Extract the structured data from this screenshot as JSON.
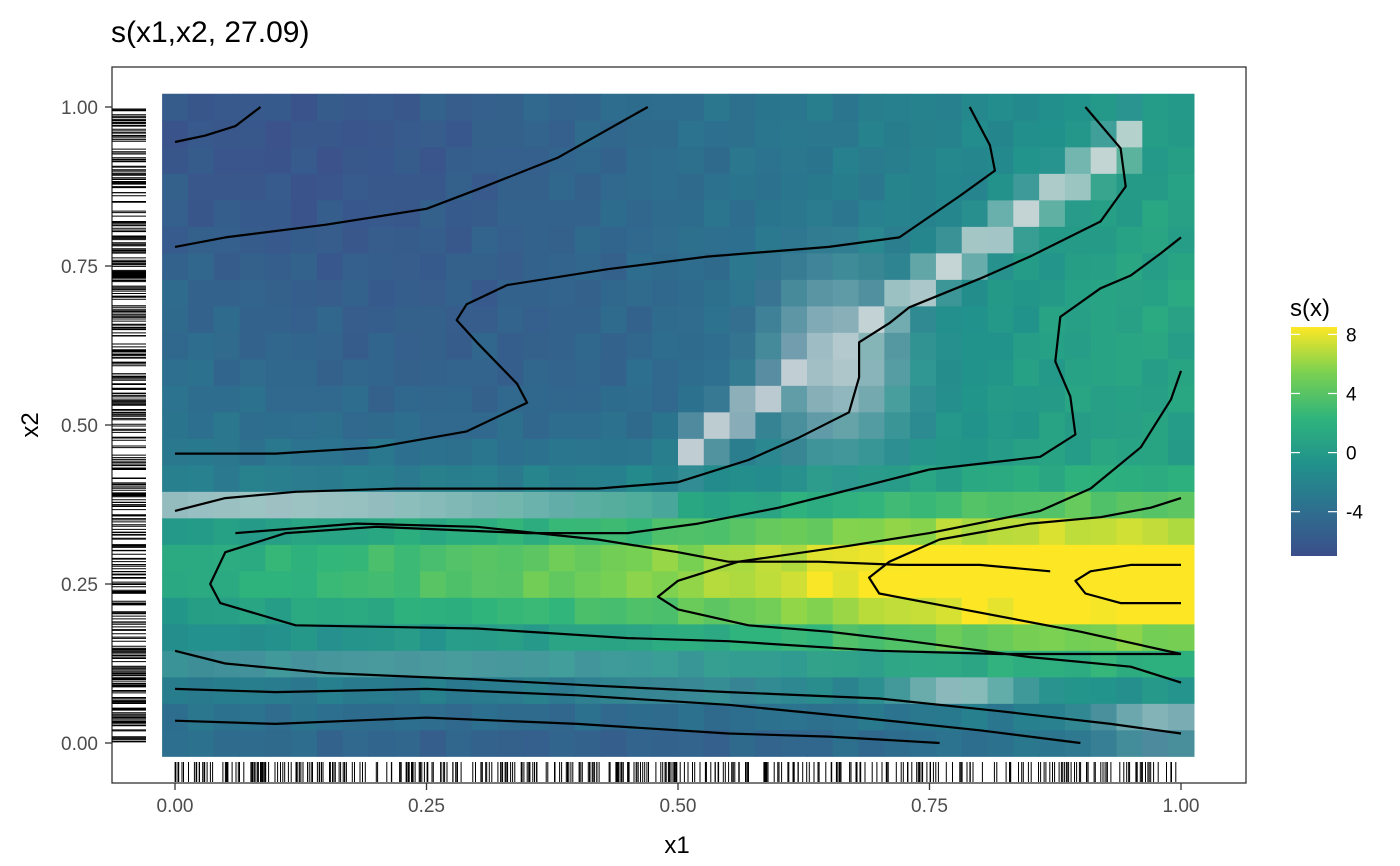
{
  "chart_data": {
    "type": "heatmap",
    "title": "s(x1,x2, 27.09)",
    "xlabel": "x1",
    "ylabel": "x2",
    "xlim": [
      0,
      1
    ],
    "ylim": [
      0,
      1
    ],
    "x_ticks": [
      0.0,
      0.25,
      0.5,
      0.75,
      1.0
    ],
    "y_ticks": [
      0.0,
      0.25,
      0.5,
      0.75,
      1.0
    ],
    "x_tick_labels": [
      "0.00",
      "0.25",
      "0.50",
      "0.75",
      "1.00"
    ],
    "y_tick_labels": [
      "0.00",
      "0.25",
      "0.50",
      "0.75",
      "1.00"
    ],
    "grid": false,
    "colorscale": "viridis",
    "legend": {
      "title": "s(x)",
      "position": "right",
      "range": [
        -7,
        8.5
      ],
      "ticks": [
        8,
        4,
        0,
        -4
      ],
      "tick_labels": [
        "8",
        "4",
        "0",
        "-4"
      ]
    },
    "surface_summary": {
      "min_region": "top-left (x1≈0.05, x2≈0.95), s(x)≈-6",
      "max_region": "right (x1≈0.97, x2≈0.25), s(x)≈8",
      "high_confidence_bands": "light bands near x2≈0.38, x2≈0.14, and diagonal ridge from (0.5,0.45) to (0.95,0.95)"
    },
    "contours": [
      [
        [
          0.0,
          0.945
        ],
        [
          0.03,
          0.955
        ],
        [
          0.06,
          0.97
        ],
        [
          0.085,
          1.0
        ]
      ],
      [
        [
          0.0,
          0.78
        ],
        [
          0.05,
          0.795
        ],
        [
          0.15,
          0.815
        ],
        [
          0.25,
          0.84
        ],
        [
          0.3,
          0.87
        ],
        [
          0.38,
          0.92
        ],
        [
          0.47,
          1.0
        ]
      ],
      [
        [
          0.0,
          0.455
        ],
        [
          0.1,
          0.455
        ],
        [
          0.2,
          0.465
        ],
        [
          0.29,
          0.49
        ],
        [
          0.35,
          0.535
        ],
        [
          0.34,
          0.565
        ],
        [
          0.3,
          0.63
        ],
        [
          0.28,
          0.665
        ],
        [
          0.29,
          0.69
        ],
        [
          0.33,
          0.72
        ],
        [
          0.43,
          0.745
        ],
        [
          0.53,
          0.765
        ],
        [
          0.65,
          0.78
        ],
        [
          0.72,
          0.795
        ],
        [
          0.78,
          0.86
        ],
        [
          0.815,
          0.9
        ],
        [
          0.81,
          0.94
        ],
        [
          0.79,
          1.0
        ]
      ],
      [
        [
          0.0,
          0.365
        ],
        [
          0.05,
          0.385
        ],
        [
          0.12,
          0.395
        ],
        [
          0.22,
          0.4
        ],
        [
          0.32,
          0.4
        ],
        [
          0.42,
          0.4
        ],
        [
          0.5,
          0.41
        ],
        [
          0.57,
          0.445
        ],
        [
          0.62,
          0.48
        ],
        [
          0.67,
          0.52
        ],
        [
          0.68,
          0.575
        ],
        [
          0.68,
          0.63
        ],
        [
          0.71,
          0.66
        ],
        [
          0.73,
          0.685
        ],
        [
          0.8,
          0.73
        ],
        [
          0.85,
          0.765
        ],
        [
          0.92,
          0.82
        ],
        [
          0.945,
          0.875
        ],
        [
          0.94,
          0.935
        ],
        [
          0.905,
          1.0
        ]
      ],
      [
        [
          0.06,
          0.33
        ],
        [
          0.18,
          0.345
        ],
        [
          0.3,
          0.34
        ],
        [
          0.42,
          0.32
        ],
        [
          0.5,
          0.3
        ],
        [
          0.55,
          0.285
        ],
        [
          0.64,
          0.285
        ],
        [
          0.72,
          0.28
        ],
        [
          0.8,
          0.28
        ],
        [
          0.87,
          0.27
        ]
      ],
      [
        [
          0.87,
          0.27
        ]
      ],
      [
        [
          1.0,
          0.795
        ],
        [
          0.98,
          0.77
        ],
        [
          0.95,
          0.735
        ],
        [
          0.92,
          0.715
        ],
        [
          0.88,
          0.67
        ],
        [
          0.875,
          0.6
        ],
        [
          0.89,
          0.545
        ],
        [
          0.895,
          0.485
        ],
        [
          0.86,
          0.45
        ],
        [
          0.75,
          0.43
        ],
        [
          0.65,
          0.39
        ],
        [
          0.6,
          0.37
        ],
        [
          0.52,
          0.345
        ],
        [
          0.45,
          0.33
        ],
        [
          0.35,
          0.33
        ],
        [
          0.2,
          0.34
        ],
        [
          0.11,
          0.33
        ],
        [
          0.05,
          0.3
        ],
        [
          0.035,
          0.25
        ],
        [
          0.045,
          0.22
        ],
        [
          0.12,
          0.185
        ],
        [
          0.3,
          0.18
        ],
        [
          0.45,
          0.165
        ],
        [
          0.55,
          0.16
        ],
        [
          0.7,
          0.145
        ],
        [
          0.82,
          0.14
        ],
        [
          1.0,
          0.14
        ]
      ],
      [
        [
          1.0,
          0.585
        ],
        [
          0.99,
          0.54
        ],
        [
          0.96,
          0.465
        ],
        [
          0.91,
          0.4
        ],
        [
          0.86,
          0.365
        ],
        [
          0.75,
          0.33
        ],
        [
          0.67,
          0.31
        ],
        [
          0.56,
          0.285
        ],
        [
          0.5,
          0.255
        ],
        [
          0.48,
          0.23
        ],
        [
          0.5,
          0.21
        ],
        [
          0.57,
          0.185
        ],
        [
          0.65,
          0.175
        ],
        [
          0.73,
          0.16
        ],
        [
          0.85,
          0.135
        ],
        [
          0.95,
          0.12
        ],
        [
          1.0,
          0.095
        ]
      ],
      [
        [
          1.0,
          0.385
        ],
        [
          0.97,
          0.37
        ],
        [
          0.92,
          0.355
        ],
        [
          0.85,
          0.345
        ],
        [
          0.76,
          0.32
        ],
        [
          0.71,
          0.285
        ],
        [
          0.69,
          0.26
        ],
        [
          0.7,
          0.235
        ],
        [
          0.8,
          0.205
        ],
        [
          0.9,
          0.175
        ],
        [
          1.0,
          0.14
        ]
      ],
      [
        [
          1.0,
          0.28
        ],
        [
          0.95,
          0.28
        ],
        [
          0.91,
          0.27
        ],
        [
          0.895,
          0.255
        ],
        [
          0.905,
          0.235
        ],
        [
          0.94,
          0.22
        ],
        [
          1.0,
          0.22
        ]
      ],
      [
        [
          0.0,
          0.145
        ],
        [
          0.05,
          0.125
        ],
        [
          0.15,
          0.11
        ],
        [
          0.3,
          0.1
        ],
        [
          0.42,
          0.09
        ],
        [
          0.55,
          0.08
        ],
        [
          0.7,
          0.07
        ],
        [
          0.82,
          0.05
        ],
        [
          0.93,
          0.03
        ],
        [
          1.0,
          0.015
        ]
      ],
      [
        [
          0.0,
          0.085
        ],
        [
          0.1,
          0.08
        ],
        [
          0.25,
          0.085
        ],
        [
          0.4,
          0.075
        ],
        [
          0.55,
          0.06
        ],
        [
          0.68,
          0.04
        ],
        [
          0.8,
          0.02
        ],
        [
          0.9,
          0.0
        ]
      ],
      [
        [
          0.0,
          0.035
        ],
        [
          0.1,
          0.03
        ],
        [
          0.25,
          0.04
        ],
        [
          0.4,
          0.03
        ],
        [
          0.55,
          0.015
        ],
        [
          0.65,
          0.01
        ],
        [
          0.76,
          0.0
        ]
      ]
    ]
  }
}
